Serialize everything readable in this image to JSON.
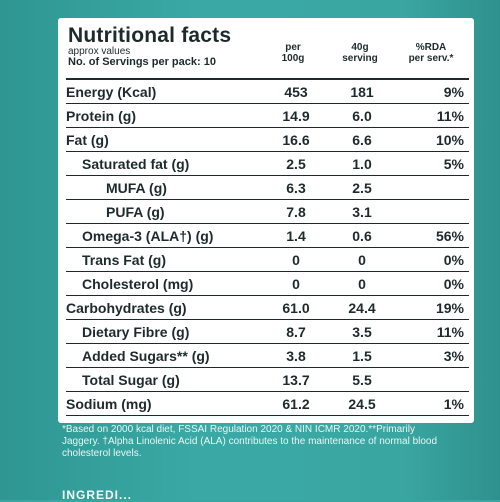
{
  "label": {
    "title": "Nutritional facts",
    "subtitle": "approx values",
    "servings": "No. of Servings per pack: 10",
    "columns": {
      "per100": [
        "per",
        "100g"
      ],
      "serving": [
        "40g",
        "serving"
      ],
      "rda": [
        "%RDA",
        "per serv.*"
      ]
    },
    "rows": [
      {
        "name": "Energy (Kcal)",
        "indent": 0,
        "per100": "453",
        "serving": "181",
        "rda": "9%"
      },
      {
        "name": "Protein (g)",
        "indent": 0,
        "per100": "14.9",
        "serving": "6.0",
        "rda": "11%"
      },
      {
        "name": "Fat (g)",
        "indent": 0,
        "per100": "16.6",
        "serving": "6.6",
        "rda": "10%"
      },
      {
        "name": "Saturated fat (g)",
        "indent": 1,
        "per100": "2.5",
        "serving": "1.0",
        "rda": "5%"
      },
      {
        "name": "MUFA (g)",
        "indent": 2,
        "per100": "6.3",
        "serving": "2.5",
        "rda": ""
      },
      {
        "name": "PUFA (g)",
        "indent": 2,
        "per100": "7.8",
        "serving": "3.1",
        "rda": ""
      },
      {
        "name": "Omega-3 (ALA†) (g)",
        "indent": 1,
        "per100": "1.4",
        "serving": "0.6",
        "rda": "56%"
      },
      {
        "name": "Trans Fat (g)",
        "indent": 1,
        "per100": "0",
        "serving": "0",
        "rda": "0%"
      },
      {
        "name": "Cholesterol (mg)",
        "indent": 1,
        "per100": "0",
        "serving": "0",
        "rda": "0%"
      },
      {
        "name": "Carbohydrates (g)",
        "indent": 0,
        "per100": "61.0",
        "serving": "24.4",
        "rda": "19%"
      },
      {
        "name": "Dietary Fibre (g)",
        "indent": 1,
        "per100": "8.7",
        "serving": "3.5",
        "rda": "11%"
      },
      {
        "name": "Added Sugars** (g)",
        "indent": 1,
        "per100": "3.8",
        "serving": "1.5",
        "rda": "3%"
      },
      {
        "name": "Total Sugar (g)",
        "indent": 1,
        "per100": "13.7",
        "serving": "5.5",
        "rda": ""
      },
      {
        "name": "Sodium (mg)",
        "indent": 0,
        "per100": "61.2",
        "serving": "24.5",
        "rda": "1%"
      }
    ]
  },
  "footnote": "*Based on 2000 kcal diet, FSSAI Regulation 2020 & NIN ICMR 2020.**Primarily Jaggery. †Alpha Linolenic Acid (ALA) contributes to the maintenance of normal blood cholesterol levels.",
  "ingredients_heading": "INGREDI..."
}
